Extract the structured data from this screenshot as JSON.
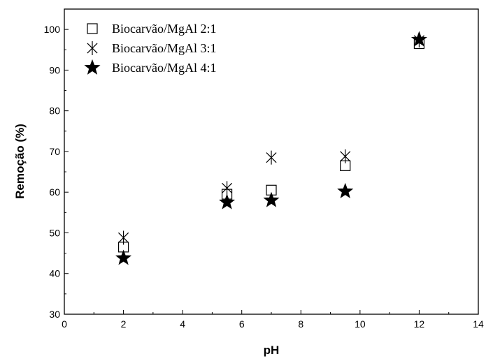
{
  "chart_data": {
    "type": "scatter",
    "title": "",
    "xlabel": "pH",
    "ylabel": "Remoção (%)",
    "xlim": [
      0,
      14
    ],
    "ylim": [
      30,
      105
    ],
    "x_ticks": [
      "0",
      "2",
      "4",
      "6",
      "8",
      "10",
      "12",
      "14"
    ],
    "y_ticks": [
      "30",
      "40",
      "50",
      "60",
      "70",
      "80",
      "90",
      "100"
    ],
    "grid": false,
    "legend_position": "top-left",
    "series": [
      {
        "name": "Biocarvão/MgAl 2:1",
        "marker": "open-square",
        "points": [
          {
            "x": 2,
            "y": 46.5
          },
          {
            "x": 5.5,
            "y": 59.5
          },
          {
            "x": 7,
            "y": 60.5
          },
          {
            "x": 9.5,
            "y": 66.5
          },
          {
            "x": 12,
            "y": 96.5
          }
        ]
      },
      {
        "name": "Biocarvão/MgAl 3:1",
        "marker": "asterisk",
        "points": [
          {
            "x": 2,
            "y": 48.8
          },
          {
            "x": 5.5,
            "y": 61
          },
          {
            "x": 7,
            "y": 68.5
          },
          {
            "x": 9.5,
            "y": 68.8
          },
          {
            "x": 12,
            "y": 97.3
          }
        ]
      },
      {
        "name": "Biocarvão/MgAl 4:1",
        "marker": "filled-star",
        "points": [
          {
            "x": 2,
            "y": 43.8
          },
          {
            "x": 5.5,
            "y": 57.5
          },
          {
            "x": 7,
            "y": 58
          },
          {
            "x": 9.5,
            "y": 60.2
          },
          {
            "x": 12,
            "y": 97.5
          }
        ]
      }
    ]
  }
}
